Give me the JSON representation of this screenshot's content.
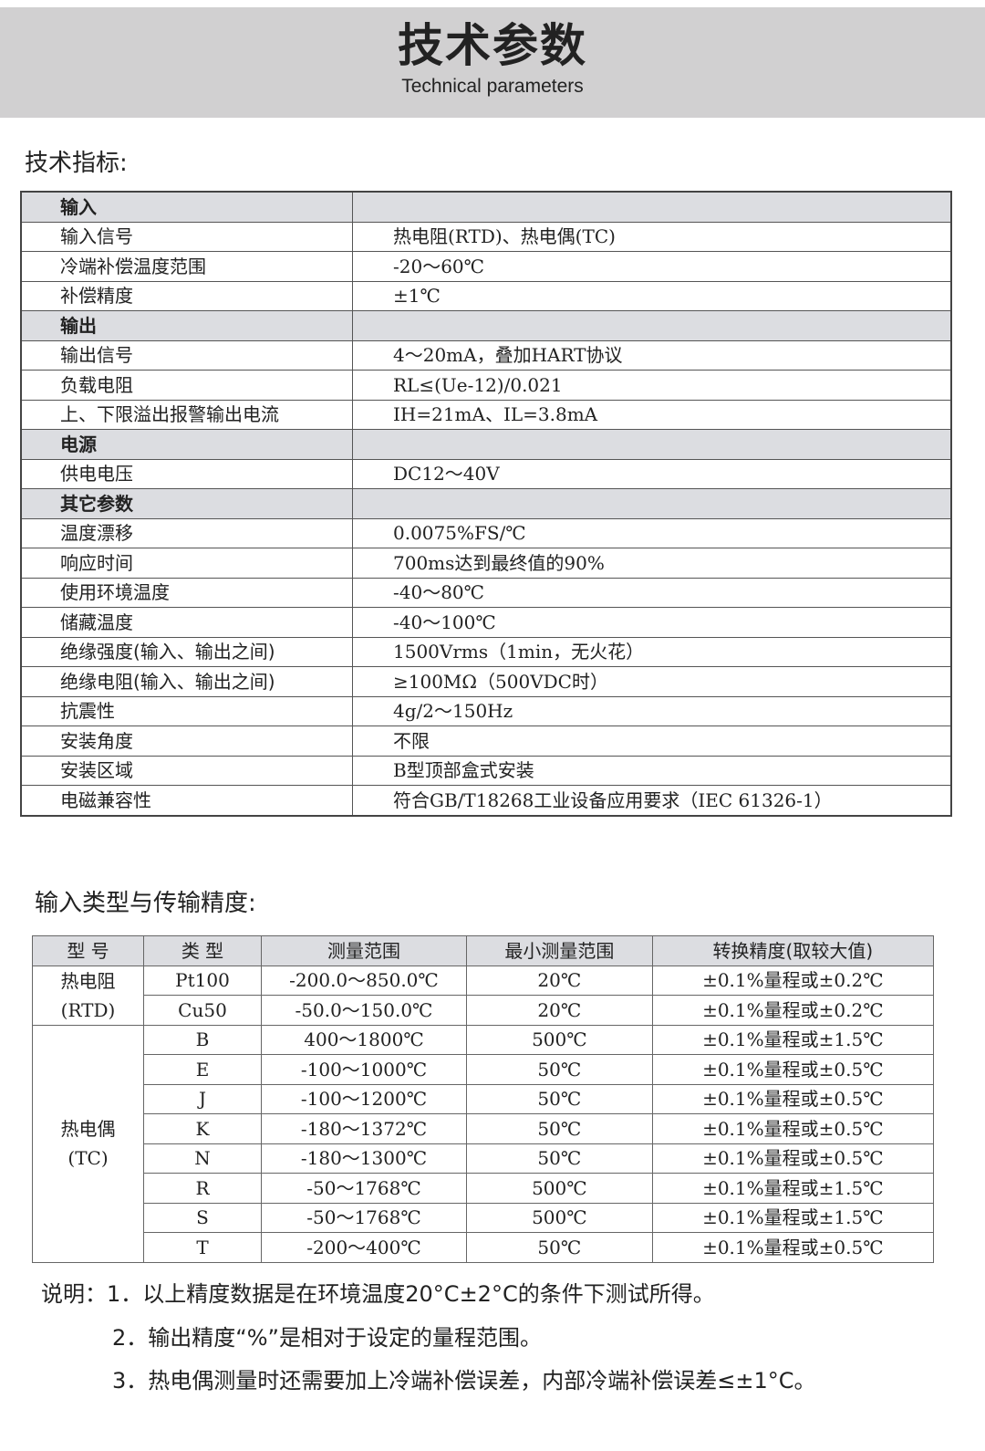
{
  "header": {
    "title": "技术参数",
    "subtitle": "Technical parameters"
  },
  "specs": {
    "heading": "技术指标:",
    "rows": [
      {
        "section": true,
        "key": "输入",
        "value": ""
      },
      {
        "key": "输入信号",
        "value": "热电阻(RTD)、热电偶(TC)"
      },
      {
        "key": "冷端补偿温度范围",
        "value": "-20～60℃"
      },
      {
        "key": "补偿精度",
        "value": "±1℃"
      },
      {
        "section": true,
        "key": "输出",
        "value": ""
      },
      {
        "key": "输出信号",
        "value": "4～20mA，叠加HART协议"
      },
      {
        "key": "负载电阻",
        "value": "RL≤(Ue-12)/0.021"
      },
      {
        "key": "上、下限溢出报警输出电流",
        "value": "IH=21mA、IL=3.8mA"
      },
      {
        "section": true,
        "key": "电源",
        "value": ""
      },
      {
        "key": "供电电压",
        "value": "DC12～40V"
      },
      {
        "section": true,
        "key": "其它参数",
        "value": ""
      },
      {
        "key": "温度漂移",
        "value": "0.0075%FS/℃"
      },
      {
        "key": "响应时间",
        "value": "700ms达到最终值的90%"
      },
      {
        "key": "使用环境温度",
        "value": "-40～80℃"
      },
      {
        "key": "储藏温度",
        "value": "-40～100℃"
      },
      {
        "key": "绝缘强度(输入、输出之间)",
        "value": "1500Vrms（1min，无火花）"
      },
      {
        "key": "绝缘电阻(输入、输出之间)",
        "value": "≥100MΩ（500VDC时）"
      },
      {
        "key": "抗震性",
        "value": "4g/2～150Hz"
      },
      {
        "key": "安装角度",
        "value": "不限"
      },
      {
        "key": "安装区域",
        "value": "B型顶部盒式安装"
      },
      {
        "key": "电磁兼容性",
        "value": "符合GB/T18268工业设备应用要求（IEC 61326-1）"
      }
    ]
  },
  "accuracy": {
    "heading": "输入类型与传输精度:",
    "columns": [
      "型 号",
      "类 型",
      "测量范围",
      "最小测量范围",
      "转换精度(取较大值)"
    ],
    "groups": [
      {
        "label": "热电阻",
        "sub": "(RTD)",
        "rows": [
          [
            "Pt100",
            "-200.0～850.0℃",
            "20℃",
            "±0.1%量程或±0.2℃"
          ],
          [
            "Cu50",
            "-50.0～150.0℃",
            "20℃",
            "±0.1%量程或±0.2℃"
          ]
        ]
      },
      {
        "label": "热电偶",
        "sub": "(TC)",
        "rows": [
          [
            "B",
            "400～1800℃",
            "500℃",
            "±0.1%量程或±1.5℃"
          ],
          [
            "E",
            "-100～1000℃",
            "50℃",
            "±0.1%量程或±0.5℃"
          ],
          [
            "J",
            "-100～1200℃",
            "50℃",
            "±0.1%量程或±0.5℃"
          ],
          [
            "K",
            "-180～1372℃",
            "50℃",
            "±0.1%量程或±0.5℃"
          ],
          [
            "N",
            "-180～1300℃",
            "50℃",
            "±0.1%量程或±0.5℃"
          ],
          [
            "R",
            "-50～1768℃",
            "500℃",
            "±0.1%量程或±1.5℃"
          ],
          [
            "S",
            "-50～1768℃",
            "500℃",
            "±0.1%量程或±1.5℃"
          ],
          [
            "T",
            "-200～400℃",
            "50℃",
            "±0.1%量程或±0.5℃"
          ]
        ]
      }
    ]
  },
  "notes": {
    "prefix": "说明：",
    "items": [
      "1．以上精度数据是在环境温度20°C±2°C的条件下测试所得。",
      "2．输出精度“%”是相对于设定的量程范围。",
      "3．热电偶测量时还需要加上冷端补偿误差，内部冷端补偿误差≤±1°C。"
    ]
  }
}
